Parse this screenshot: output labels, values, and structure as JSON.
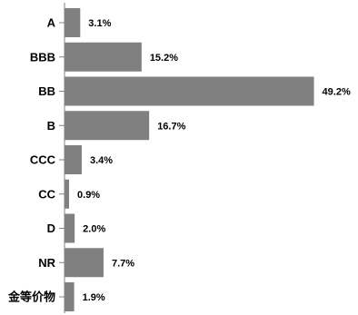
{
  "chart_data": {
    "type": "bar",
    "orientation": "horizontal",
    "categories": [
      "A",
      "BBB",
      "BB",
      "B",
      "CCC",
      "CC",
      "D",
      "NR",
      "金等价物"
    ],
    "values": [
      3.1,
      15.2,
      49.2,
      16.7,
      3.4,
      0.9,
      2.0,
      7.7,
      1.9
    ],
    "value_labels": [
      "3.1%",
      "15.2%",
      "49.2%",
      "16.7%",
      "3.4%",
      "0.9%",
      "2.0%",
      "7.7%",
      "1.9%"
    ],
    "xlim": [
      0,
      50
    ],
    "grid": false,
    "legend": "none",
    "colors": {
      "bar": "#808080",
      "axis": "#808080",
      "text": "#000000"
    }
  }
}
